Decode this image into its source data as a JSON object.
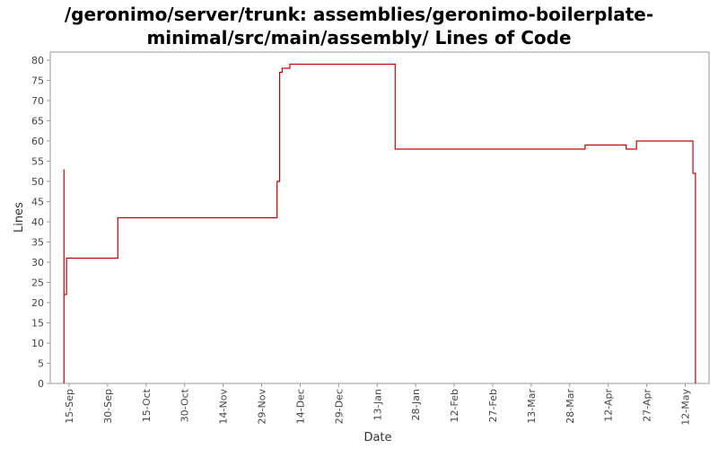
{
  "title_lines": [
    "/geronimo/server/trunk: assemblies/geronimo-boilerplate-",
    "minimal/src/main/assembly/ Lines of Code"
  ],
  "chart_data": {
    "type": "line",
    "title": "/geronimo/server/trunk: assemblies/geronimo-boilerplate-minimal/src/main/assembly/ Lines of Code",
    "xlabel": "Date",
    "ylabel": "Lines",
    "ylim": [
      0,
      82
    ],
    "yticks": [
      0,
      5,
      10,
      15,
      20,
      25,
      30,
      35,
      40,
      45,
      50,
      55,
      60,
      65,
      70,
      75,
      80
    ],
    "xticks": [
      "15-Sep",
      "30-Sep",
      "15-Oct",
      "30-Oct",
      "14-Nov",
      "29-Nov",
      "14-Dec",
      "29-Dec",
      "13-Jan",
      "28-Jan",
      "12-Feb",
      "27-Feb",
      "13-Mar",
      "28-Mar",
      "12-Apr",
      "27-Apr",
      "12-May"
    ],
    "grid": false,
    "line_color": "#cc0000",
    "series": [
      {
        "step": true,
        "points": [
          {
            "x": "13-Sep",
            "y": 0
          },
          {
            "x": "13-Sep",
            "y": 11
          },
          {
            "x": "13-Sep",
            "y": 53
          },
          {
            "x": "13-Sep",
            "y": 22
          },
          {
            "x": "14-Sep",
            "y": 31
          },
          {
            "x": "4-Oct",
            "y": 41
          },
          {
            "x": "5-Dec",
            "y": 50
          },
          {
            "x": "6-Dec",
            "y": 68
          },
          {
            "x": "6-Dec",
            "y": 77
          },
          {
            "x": "7-Dec",
            "y": 78
          },
          {
            "x": "10-Dec",
            "y": 79
          },
          {
            "x": "20-Jan",
            "y": 58
          },
          {
            "x": "3-Apr",
            "y": 59
          },
          {
            "x": "19-Apr",
            "y": 58
          },
          {
            "x": "23-Apr",
            "y": 60
          },
          {
            "x": "15-May",
            "y": 52
          },
          {
            "x": "16-May",
            "y": 0
          }
        ]
      }
    ]
  }
}
